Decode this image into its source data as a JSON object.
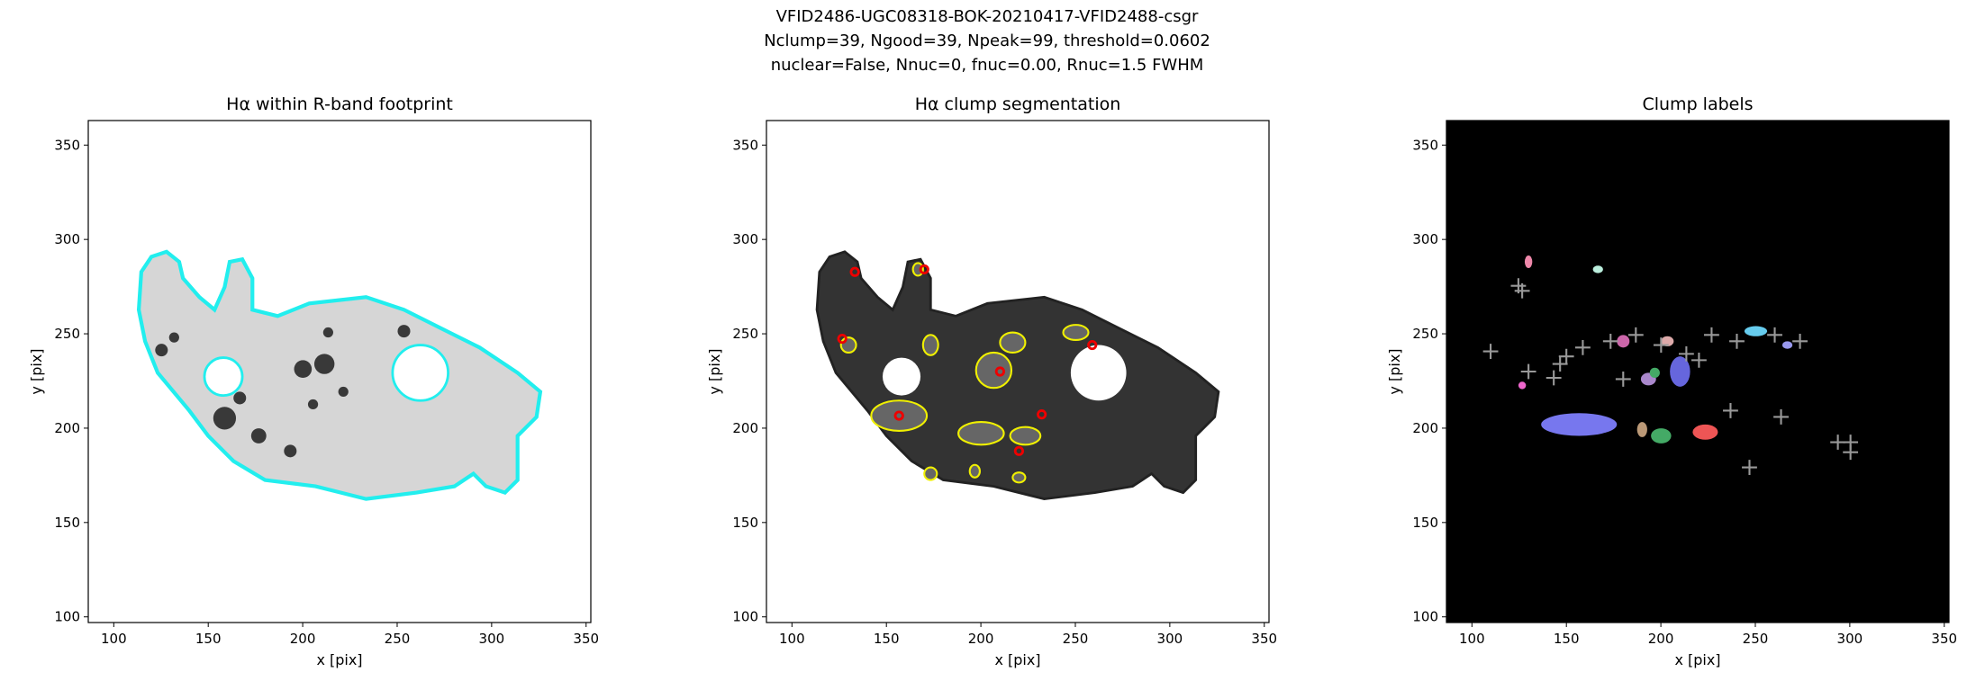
{
  "figure_title": [
    "VFID2486-UGC08318-BOK-20210417-VFID2488-csgr",
    "Nclump=39, Ngood=39, Npeak=99, threshold=0.0602",
    "nuclear=False, Nnuc=0, fnuc=0.00, Rnuc=1.5 FWHM"
  ],
  "chart_data": [
    {
      "type": "image",
      "title": "Hα within R-band footprint",
      "xlabel": "x [pix]",
      "ylabel": "y [pix]",
      "xlim": [
        86.5,
        352.5
      ],
      "ylim": [
        97,
        363
      ],
      "xticks": [
        100,
        150,
        200,
        250,
        300,
        350
      ],
      "yticks": [
        100,
        150,
        200,
        250,
        300,
        350
      ],
      "style": "footprint"
    },
    {
      "type": "image",
      "title": "Hα clump segmentation",
      "xlabel": "x [pix]",
      "ylabel": "y [pix]",
      "xlim": [
        86.5,
        352.5
      ],
      "ylim": [
        97,
        363
      ],
      "xticks": [
        100,
        150,
        200,
        250,
        300,
        350
      ],
      "yticks": [
        100,
        150,
        200,
        250,
        300,
        350
      ],
      "style": "segmentation"
    },
    {
      "type": "image",
      "title": "Clump labels",
      "xlabel": "x [pix]",
      "ylabel": "y [pix]",
      "xlim": [
        86.5,
        352.5
      ],
      "ylim": [
        97,
        363
      ],
      "xticks": [
        100,
        150,
        200,
        250,
        300,
        350
      ],
      "yticks": [
        100,
        150,
        200,
        250,
        300,
        350
      ],
      "style": "labels"
    }
  ]
}
